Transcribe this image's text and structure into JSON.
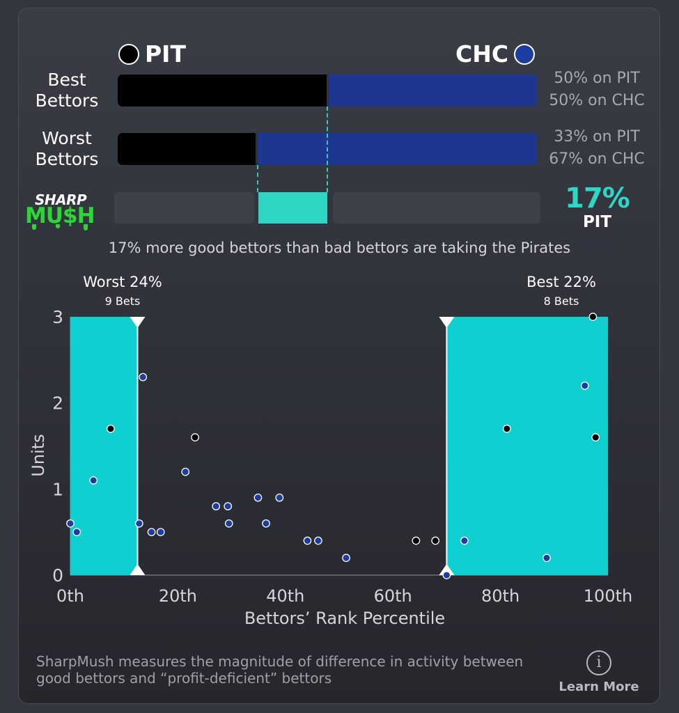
{
  "header": {
    "team_a": "PIT",
    "team_b": "CHC",
    "team_a_color": "#000000",
    "team_b_color": "#1d3791"
  },
  "rows": {
    "best": {
      "label_line1": "Best",
      "label_line2": "Bettors",
      "pit_pct": 50,
      "chc_pct": 50,
      "pit_text": "50% on PIT",
      "chc_text": "50% on CHC"
    },
    "worst": {
      "label_line1": "Worst",
      "label_line2": "Bettors",
      "pit_pct": 33,
      "chc_pct": 67,
      "pit_text": "33% on PIT",
      "chc_text": "67% on CHC"
    }
  },
  "sharpmush": {
    "logo_top": "SHARP",
    "logo_bottom": "MU$H",
    "difference": "17%",
    "difference_team": "PIT",
    "difference_value": 17,
    "summary": "17% more good bettors than bad bettors are taking the Pirates",
    "accent_color": "#2fd6c4"
  },
  "zones": {
    "worst": {
      "title": "Worst 24%",
      "bets": "9 Bets"
    },
    "best": {
      "title": "Best 22%",
      "bets": "8 Bets"
    }
  },
  "chart_data": {
    "type": "scatter",
    "xlabel": "Bettors’ Rank Percentile",
    "ylabel": "Units",
    "xlim": [
      0,
      100
    ],
    "ylim": [
      0,
      3
    ],
    "x_ticks": [
      {
        "value": 0,
        "label": "0th"
      },
      {
        "value": 20,
        "label": "20th"
      },
      {
        "value": 40,
        "label": "40th"
      },
      {
        "value": 60,
        "label": "60th"
      },
      {
        "value": 80,
        "label": "80th"
      },
      {
        "value": 100,
        "label": "100th"
      }
    ],
    "y_ticks": [
      {
        "value": 0,
        "label": "0"
      },
      {
        "value": 1,
        "label": "1"
      },
      {
        "value": 2,
        "label": "2"
      },
      {
        "value": 3,
        "label": "3"
      }
    ],
    "highlight_ranges": [
      {
        "from": 0,
        "to": 12.5
      },
      {
        "from": 70,
        "to": 100
      }
    ],
    "series": [
      {
        "name": "PIT",
        "color": "#000000",
        "points": [
          {
            "x": 7.5,
            "y": 1.7
          },
          {
            "x": 23.2,
            "y": 1.6
          },
          {
            "x": 64.3,
            "y": 0.4
          },
          {
            "x": 67.9,
            "y": 0.4
          },
          {
            "x": 81.2,
            "y": 1.7
          },
          {
            "x": 97.2,
            "y": 3.0
          },
          {
            "x": 97.7,
            "y": 1.6
          }
        ]
      },
      {
        "name": "CHC",
        "color": "#1d3ea0",
        "points": [
          {
            "x": 0.0,
            "y": 0.6
          },
          {
            "x": 1.2,
            "y": 0.5
          },
          {
            "x": 4.3,
            "y": 1.1
          },
          {
            "x": 12.8,
            "y": 0.6
          },
          {
            "x": 13.5,
            "y": 2.3
          },
          {
            "x": 15.1,
            "y": 0.5
          },
          {
            "x": 16.8,
            "y": 0.5
          },
          {
            "x": 21.4,
            "y": 1.2
          },
          {
            "x": 27.1,
            "y": 0.8
          },
          {
            "x": 29.3,
            "y": 0.8
          },
          {
            "x": 29.5,
            "y": 0.6
          },
          {
            "x": 34.9,
            "y": 0.9
          },
          {
            "x": 36.4,
            "y": 0.6
          },
          {
            "x": 38.9,
            "y": 0.9
          },
          {
            "x": 44.1,
            "y": 0.4
          },
          {
            "x": 46.1,
            "y": 0.4
          },
          {
            "x": 51.3,
            "y": 0.2
          },
          {
            "x": 70.0,
            "y": 0.0
          },
          {
            "x": 73.3,
            "y": 0.4
          },
          {
            "x": 88.6,
            "y": 0.2
          },
          {
            "x": 95.7,
            "y": 2.2
          }
        ]
      }
    ]
  },
  "footer": {
    "description": "SharpMush measures the magnitude of difference in activity between good bettors and “profit-deficient” bettors",
    "learn_more": "Learn More",
    "info_icon": "info-icon"
  }
}
